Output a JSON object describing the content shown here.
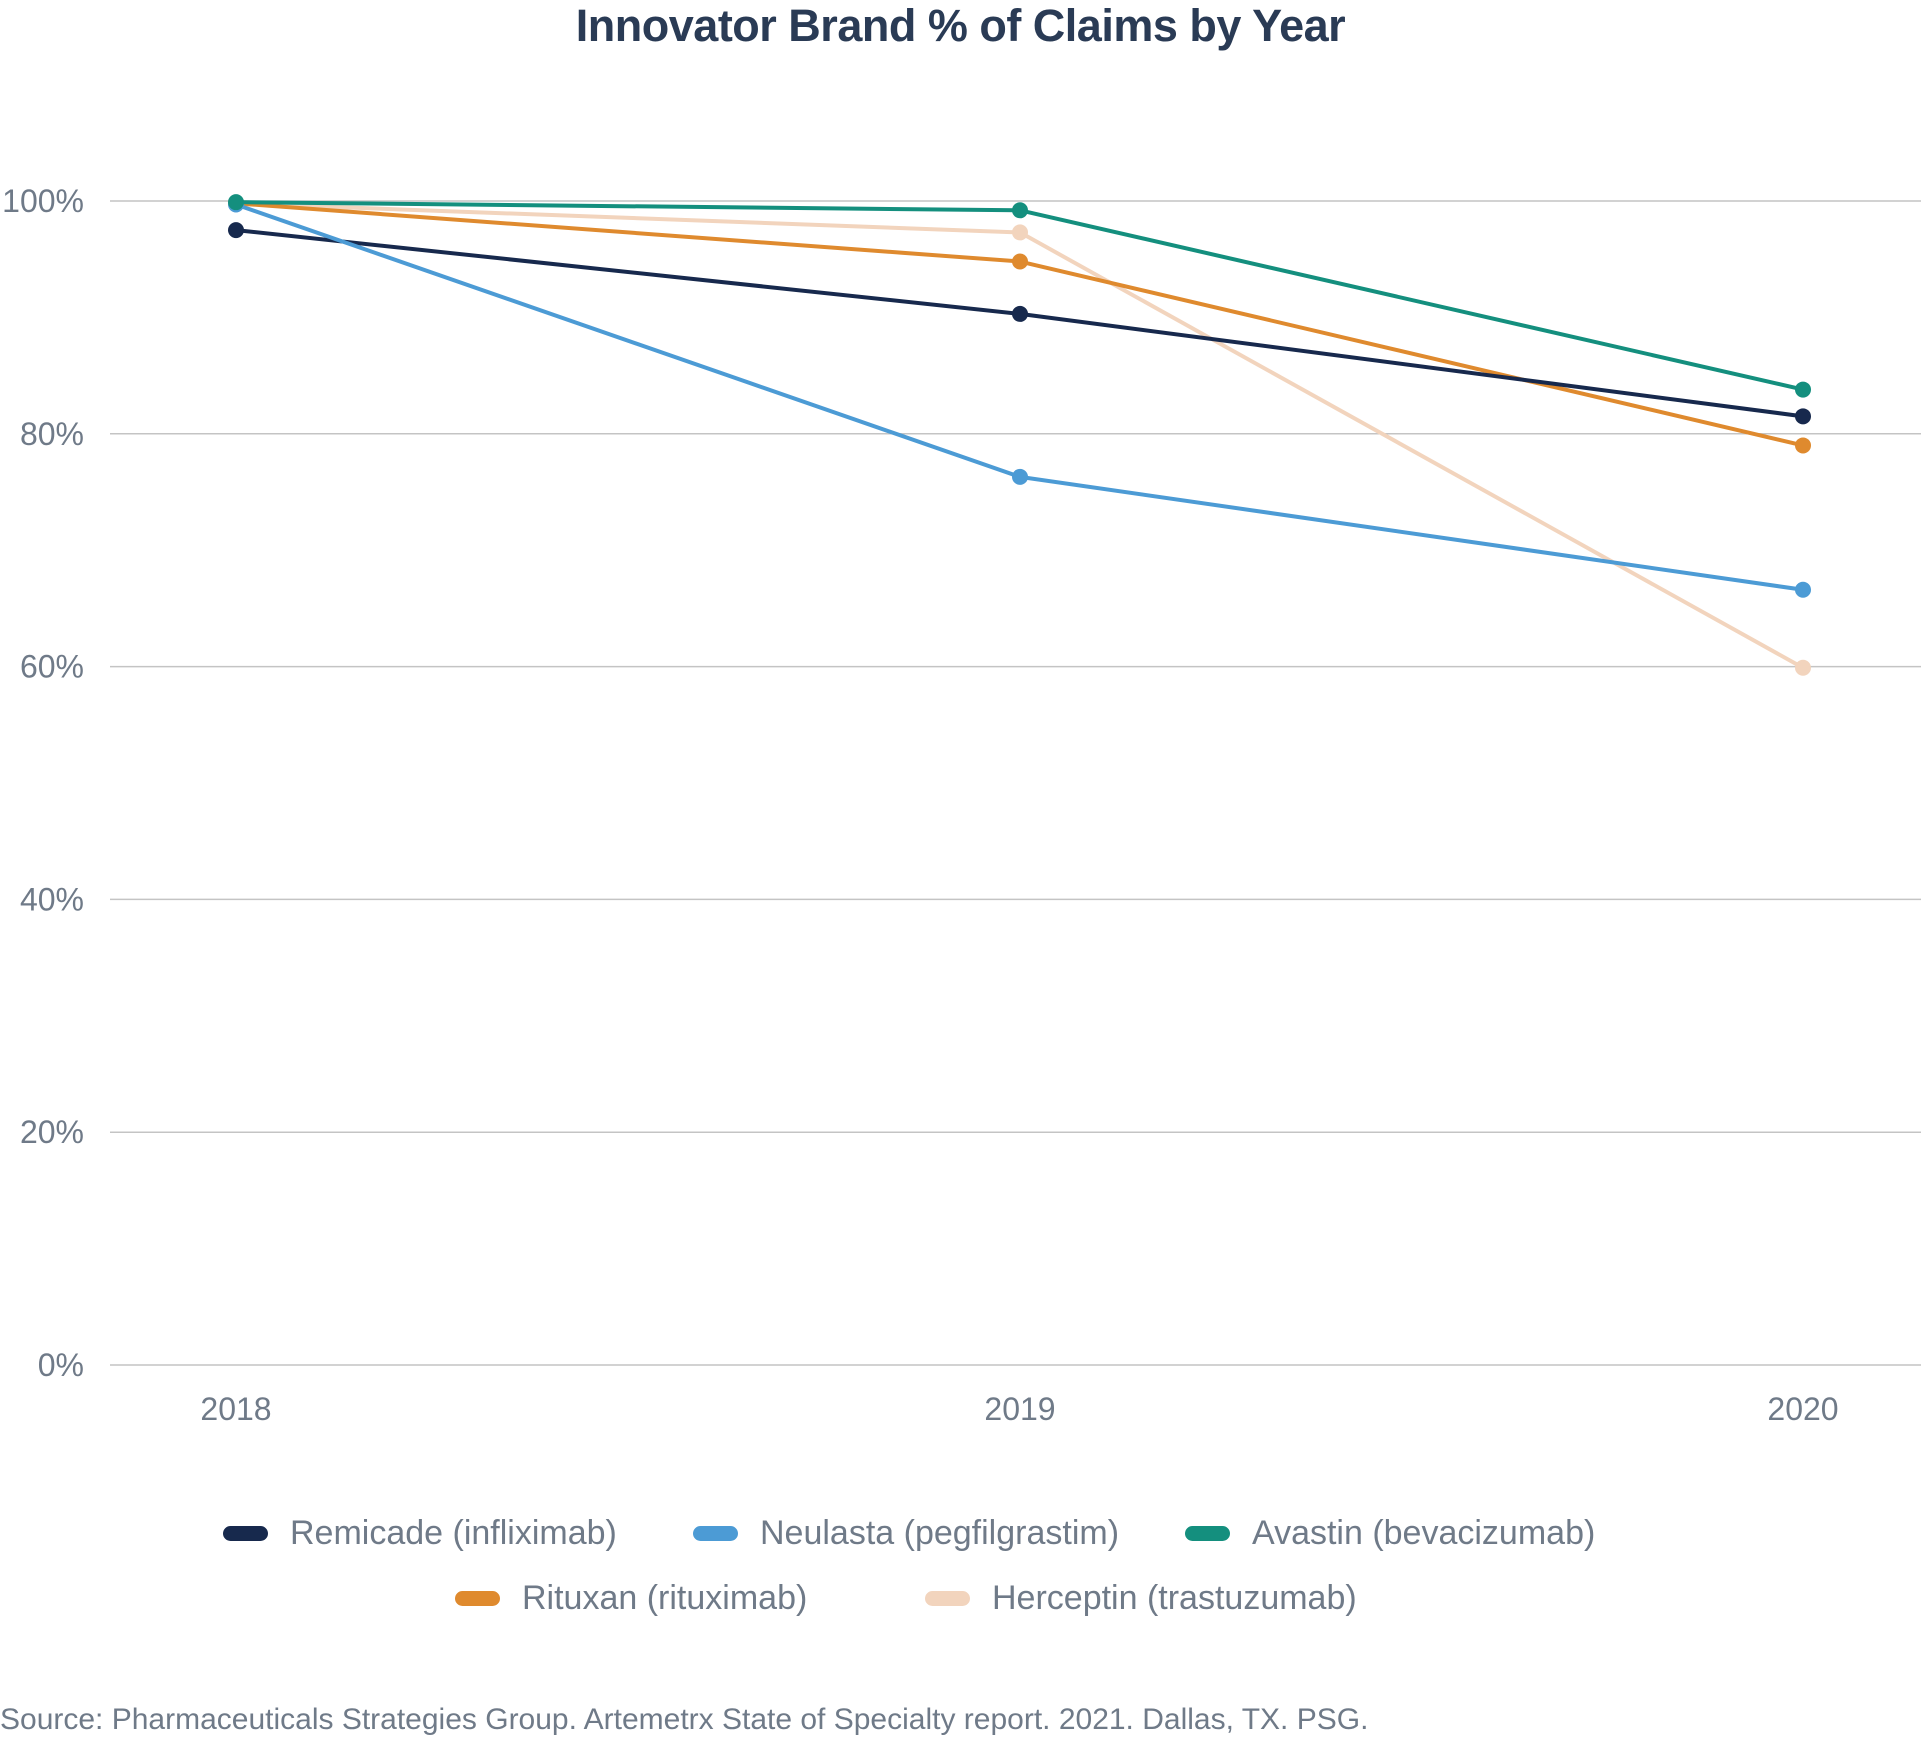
{
  "chart_data": {
    "type": "line",
    "title": "Innovator Brand %  of Claims by Year",
    "xlabel": "",
    "ylabel": "",
    "categories": [
      "2018",
      "2019",
      "2020"
    ],
    "y_ticks": [
      "0%",
      "20%",
      "40%",
      "60%",
      "80%",
      "100%"
    ],
    "ylim": [
      0,
      100
    ],
    "grid": "horizontal",
    "legend_position": "bottom",
    "series": [
      {
        "name": "Remicade (infliximab)",
        "color": "#17294d",
        "values": [
          97.5,
          90.3,
          81.5
        ]
      },
      {
        "name": "Neulasta (pegfilgrastim)",
        "color": "#4c9bd5",
        "values": [
          99.7,
          76.3,
          66.6
        ]
      },
      {
        "name": "Avastin (bevacizumab)",
        "color": "#148f7e",
        "values": [
          99.9,
          99.2,
          83.8
        ]
      },
      {
        "name": "Rituxan (rituximab)",
        "color": "#df8a2e",
        "values": [
          99.8,
          94.8,
          79.0
        ]
      },
      {
        "name": "Herceptin (trastuzumab)",
        "color": "#f2d4bd",
        "values": [
          99.8,
          97.3,
          59.9
        ]
      }
    ]
  },
  "source": "Source: Pharmaceuticals Strategies Group. Artemetrx State of Specialty report. 2021. Dallas, TX. PSG."
}
